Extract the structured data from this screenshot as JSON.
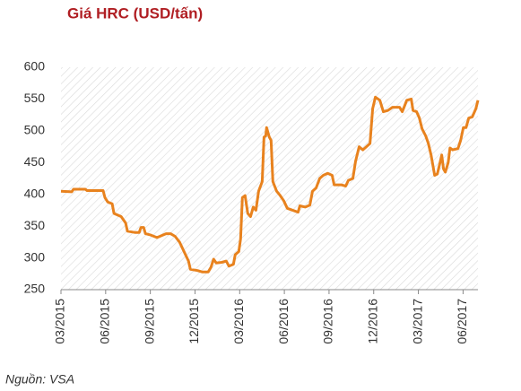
{
  "chart_data": {
    "type": "line",
    "title": "Giá HRC (USD/tấn)",
    "source": "Nguồn: VSA",
    "color": "#e8821e",
    "x": [
      0,
      0.72,
      0.84,
      1.63,
      1.75,
      2.83,
      2.95,
      3.14,
      3.44,
      3.56,
      4.04,
      4.34,
      4.46,
      4.95,
      5.25,
      5.37,
      5.55,
      5.67,
      6.03,
      6.45,
      6.75,
      7.06,
      7.36,
      7.66,
      7.96,
      8.26,
      8.56,
      8.69,
      9.17,
      9.47,
      9.89,
      10.07,
      10.25,
      10.43,
      10.8,
      11.1,
      11.28,
      11.58,
      11.7,
      11.94,
      12.06,
      12.18,
      12.36,
      12.54,
      12.73,
      12.91,
      13.09,
      13.27,
      13.51,
      13.63,
      13.75,
      13.81,
      13.99,
      14.11,
      14.23,
      14.48,
      14.72,
      14.96,
      15.2,
      15.56,
      15.92,
      16.04,
      16.41,
      16.71,
      16.89,
      17.13,
      17.37,
      17.61,
      17.91,
      18.21,
      18.34,
      18.82,
      19.12,
      19.3,
      19.6,
      19.78,
      20.02,
      20.27,
      20.51,
      20.75,
      20.93,
      21.11,
      21.41,
      21.65,
      21.95,
      22.26,
      22.74,
      22.92,
      23.04,
      23.22,
      23.52,
      23.64,
      23.88,
      24.07,
      24.25,
      24.49,
      24.67,
      24.85,
      25.09,
      25.27,
      25.45,
      25.57,
      25.69,
      25.81,
      26,
      26.12,
      26.3,
      26.66,
      26.84,
      27.02,
      27.2,
      27.38,
      27.62,
      27.86,
      28
    ],
    "values": [
      405,
      404,
      408,
      408,
      406,
      406,
      395,
      388,
      385,
      370,
      365,
      355,
      342,
      340,
      340,
      348,
      348,
      338,
      336,
      332,
      335,
      338,
      338,
      334,
      325,
      310,
      295,
      282,
      280,
      278,
      278,
      285,
      298,
      292,
      293,
      295,
      287,
      290,
      305,
      310,
      330,
      395,
      398,
      370,
      365,
      380,
      375,
      405,
      420,
      490,
      492,
      505,
      490,
      485,
      420,
      405,
      398,
      390,
      378,
      375,
      372,
      382,
      380,
      383,
      405,
      410,
      425,
      430,
      433,
      430,
      415,
      415,
      413,
      422,
      425,
      452,
      475,
      470,
      475,
      480,
      535,
      553,
      548,
      530,
      532,
      537,
      537,
      530,
      537,
      548,
      550,
      532,
      530,
      520,
      503,
      492,
      480,
      462,
      430,
      432,
      450,
      462,
      440,
      435,
      450,
      473,
      470,
      472,
      485,
      505,
      505,
      520,
      522,
      535,
      548
    ],
    "xlim": [
      0,
      28
    ],
    "xticks": [
      {
        "value": 0,
        "label": "03/2015"
      },
      {
        "value": 3,
        "label": "06/2015"
      },
      {
        "value": 6,
        "label": "09/2015"
      },
      {
        "value": 9,
        "label": "12/2015"
      },
      {
        "value": 12,
        "label": "03/2016"
      },
      {
        "value": 15,
        "label": "06/2016"
      },
      {
        "value": 18,
        "label": "09/2016"
      },
      {
        "value": 21,
        "label": "12/2016"
      },
      {
        "value": 24,
        "label": "03/2017"
      },
      {
        "value": 27,
        "label": "06/2017"
      }
    ],
    "ylim": [
      250,
      600
    ],
    "yticks": [
      250,
      300,
      350,
      400,
      450,
      500,
      550,
      600
    ]
  }
}
